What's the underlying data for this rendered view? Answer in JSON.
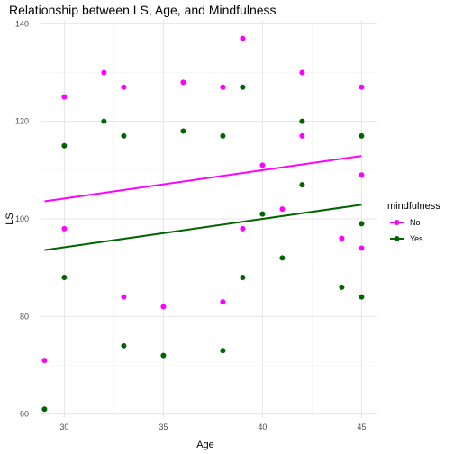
{
  "chart_data": {
    "type": "scatter",
    "title": "Relationship between LS, Age, and Mindfulness",
    "xlabel": "Age",
    "ylabel": "LS",
    "xlim": [
      28.8,
      45.8
    ],
    "ylim": [
      59.2,
      140.8
    ],
    "xticks": [
      30,
      35,
      40,
      45
    ],
    "yticks": [
      60,
      80,
      100,
      120,
      140
    ],
    "grid": true,
    "legend": {
      "title": "mindfulness",
      "position": "right",
      "entries": [
        "No",
        "Yes"
      ]
    },
    "series": [
      {
        "name": "No",
        "color": "#ff00ff",
        "points": [
          [
            29,
            71
          ],
          [
            30,
            125
          ],
          [
            30,
            98
          ],
          [
            32,
            130
          ],
          [
            33,
            127
          ],
          [
            33,
            84
          ],
          [
            35,
            82
          ],
          [
            36,
            128
          ],
          [
            38,
            127
          ],
          [
            38,
            83
          ],
          [
            39,
            137
          ],
          [
            39,
            98
          ],
          [
            40,
            111
          ],
          [
            41,
            102
          ],
          [
            42,
            130
          ],
          [
            42,
            117
          ],
          [
            44,
            96
          ],
          [
            45,
            127
          ],
          [
            45,
            109
          ],
          [
            45,
            94
          ]
        ],
        "fit": {
          "x": [
            29,
            45
          ],
          "y": [
            103.6,
            112.9
          ]
        }
      },
      {
        "name": "Yes",
        "color": "#006400",
        "points": [
          [
            29,
            61
          ],
          [
            30,
            115
          ],
          [
            30,
            88
          ],
          [
            32,
            120
          ],
          [
            33,
            117
          ],
          [
            33,
            74
          ],
          [
            35,
            72
          ],
          [
            36,
            118
          ],
          [
            38,
            117
          ],
          [
            38,
            73
          ],
          [
            39,
            127
          ],
          [
            39,
            88
          ],
          [
            40,
            101
          ],
          [
            41,
            92
          ],
          [
            42,
            120
          ],
          [
            42,
            107
          ],
          [
            44,
            86
          ],
          [
            45,
            117
          ],
          [
            45,
            99
          ],
          [
            45,
            84
          ]
        ],
        "fit": {
          "x": [
            29,
            45
          ],
          "y": [
            93.6,
            102.9
          ]
        }
      }
    ]
  }
}
